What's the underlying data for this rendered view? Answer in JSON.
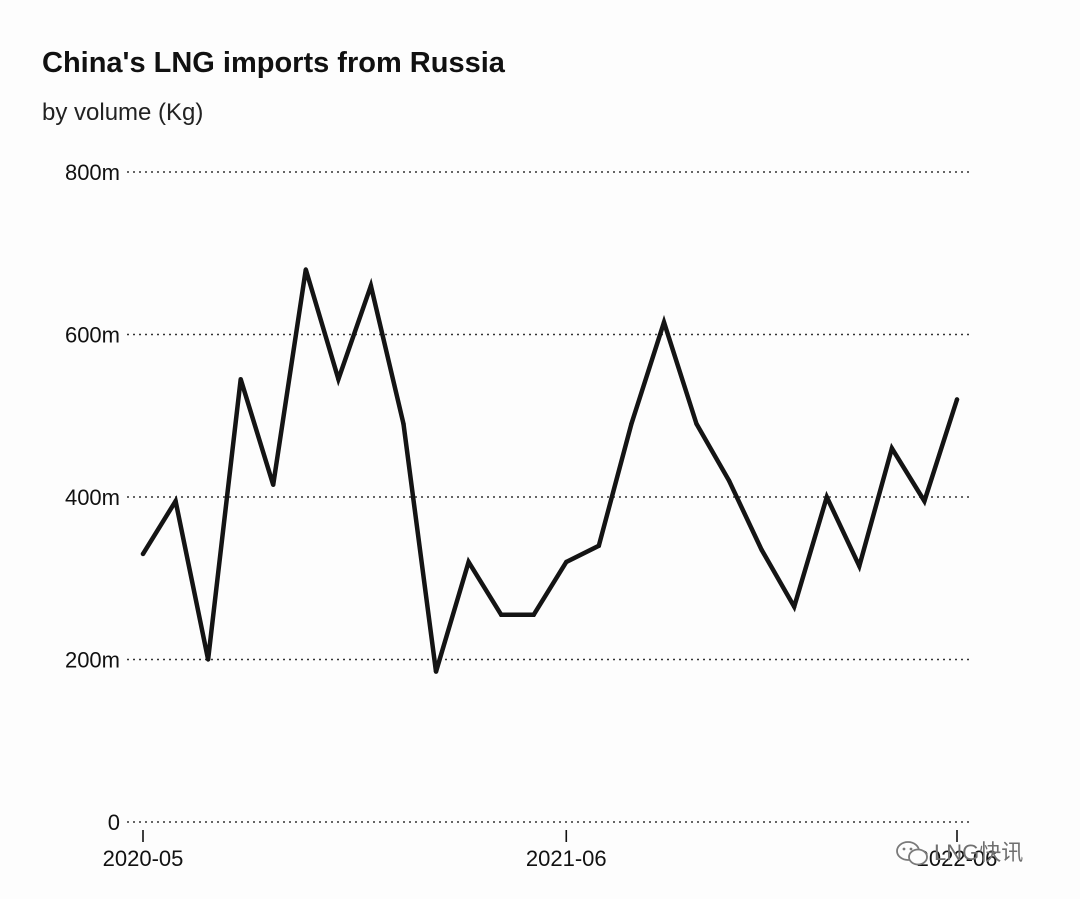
{
  "colors": {
    "background": "#fdfdfd",
    "line": "#141414",
    "grid": "#333333",
    "text": "#111111"
  },
  "watermark": {
    "text": "LNG快讯",
    "icon": "wechat-icon"
  },
  "chart_data": {
    "type": "line",
    "title": "China's LNG imports from Russia",
    "subtitle": "by volume (Kg)",
    "xlabel": "",
    "ylabel": "",
    "x_start": "2020-05",
    "x_end": "2022-06",
    "ylim": [
      0,
      800000000
    ],
    "yticks": [
      {
        "value": 0,
        "label": "0"
      },
      {
        "value": 200000000,
        "label": "200m"
      },
      {
        "value": 400000000,
        "label": "400m"
      },
      {
        "value": 600000000,
        "label": "600m"
      },
      {
        "value": 800000000,
        "label": "800m"
      }
    ],
    "xticks": [
      {
        "value": "2020-05",
        "label": "2020-05"
      },
      {
        "value": "2021-06",
        "label": "2021-06"
      },
      {
        "value": "2022-06",
        "label": "2022-06"
      }
    ],
    "grid": "horizontal-dotted",
    "legend": "none",
    "series": [
      {
        "x": [
          "2020-05",
          "2020-06",
          "2020-07",
          "2020-08",
          "2020-09",
          "2020-10",
          "2020-11",
          "2020-12",
          "2021-01",
          "2021-02",
          "2021-03",
          "2021-04",
          "2021-05",
          "2021-06",
          "2021-07",
          "2021-08",
          "2021-09",
          "2021-10",
          "2021-11",
          "2021-12",
          "2022-01",
          "2022-02",
          "2022-03",
          "2022-04",
          "2022-05",
          "2022-06"
        ],
        "values": [
          330000000,
          395000000,
          200000000,
          545000000,
          415000000,
          680000000,
          545000000,
          660000000,
          490000000,
          185000000,
          320000000,
          255000000,
          255000000,
          320000000,
          340000000,
          490000000,
          615000000,
          490000000,
          420000000,
          335000000,
          265000000,
          400000000,
          315000000,
          460000000,
          395000000,
          520000000
        ]
      }
    ]
  }
}
